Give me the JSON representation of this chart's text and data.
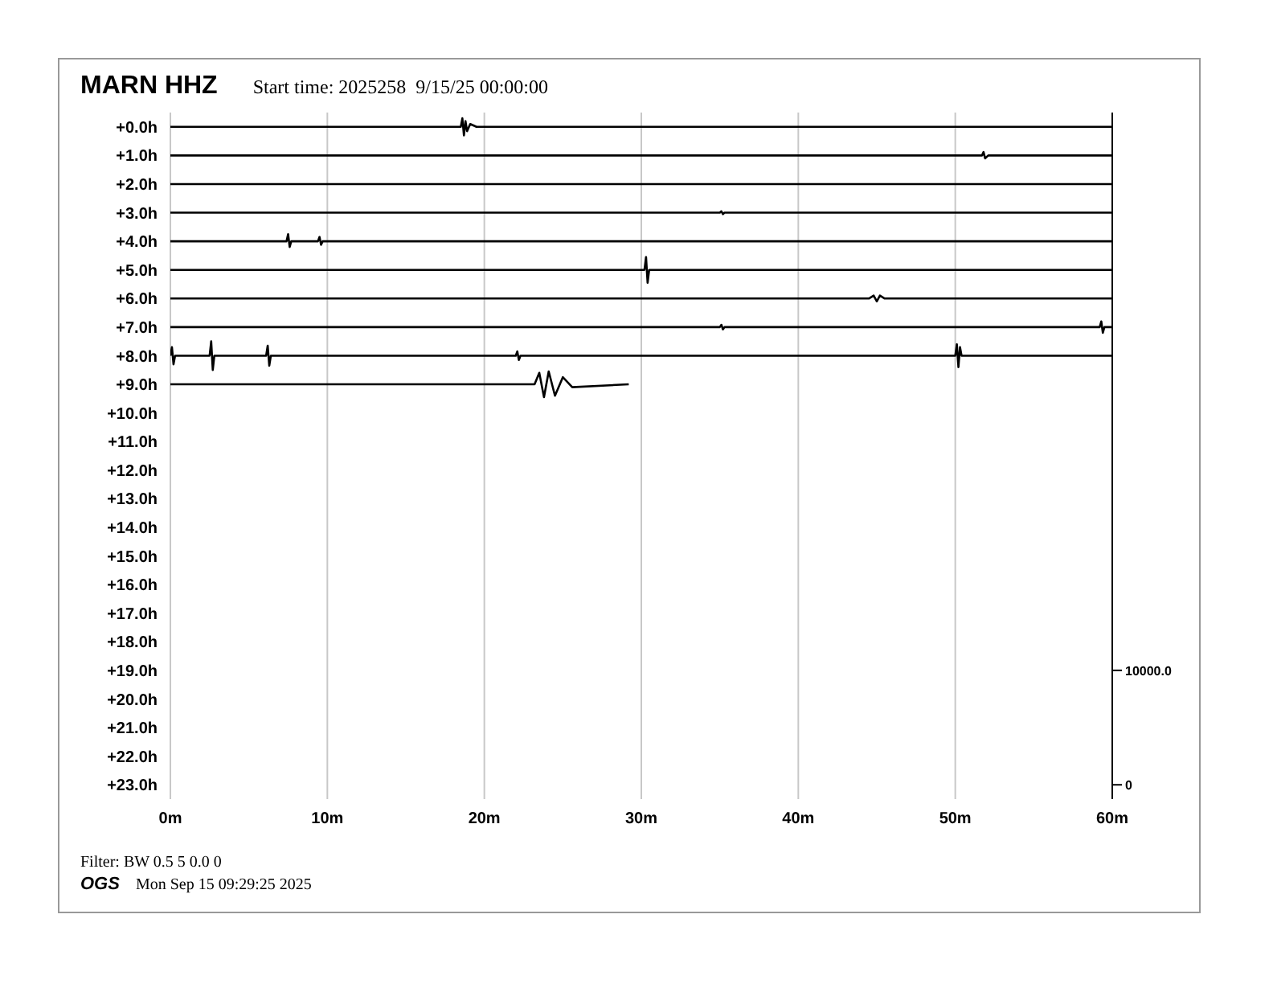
{
  "chart_data": {
    "type": "line",
    "title": "MARN HHZ",
    "subtitle": "Start time: 2025258  9/15/25 00:00:00",
    "annotations": [
      "Filter: BW 0.5 5 0.0 0",
      "OGS",
      "Mon Sep 15 09:29:25 2025"
    ],
    "xlim": [
      0,
      60
    ],
    "xticks": [
      {
        "value": 0,
        "label": "0m"
      },
      {
        "value": 10,
        "label": "10m"
      },
      {
        "value": 20,
        "label": "20m"
      },
      {
        "value": 30,
        "label": "30m"
      },
      {
        "value": 40,
        "label": "40m"
      },
      {
        "value": 50,
        "label": "50m"
      },
      {
        "value": 60,
        "label": "60m"
      }
    ],
    "ylim": [
      23.5,
      -0.5
    ],
    "yticks": [
      {
        "value": 0,
        "label": "+0.0h"
      },
      {
        "value": 1,
        "label": "+1.0h"
      },
      {
        "value": 2,
        "label": "+2.0h"
      },
      {
        "value": 3,
        "label": "+3.0h"
      },
      {
        "value": 4,
        "label": "+4.0h"
      },
      {
        "value": 5,
        "label": "+5.0h"
      },
      {
        "value": 6,
        "label": "+6.0h"
      },
      {
        "value": 7,
        "label": "+7.0h"
      },
      {
        "value": 8,
        "label": "+8.0h"
      },
      {
        "value": 9,
        "label": "+9.0h"
      },
      {
        "value": 10,
        "label": "+10.0h"
      },
      {
        "value": 11,
        "label": "+11.0h"
      },
      {
        "value": 12,
        "label": "+12.0h"
      },
      {
        "value": 13,
        "label": "+13.0h"
      },
      {
        "value": 14,
        "label": "+14.0h"
      },
      {
        "value": 15,
        "label": "+15.0h"
      },
      {
        "value": 16,
        "label": "+16.0h"
      },
      {
        "value": 17,
        "label": "+17.0h"
      },
      {
        "value": 18,
        "label": "+18.0h"
      },
      {
        "value": 19,
        "label": "+19.0h"
      },
      {
        "value": 20,
        "label": "+20.0h"
      },
      {
        "value": 21,
        "label": "+21.0h"
      },
      {
        "value": 22,
        "label": "+22.0h"
      },
      {
        "value": 23,
        "label": "+23.0h"
      }
    ],
    "y2lim": [
      -1250,
      58750
    ],
    "y2ticks": [
      0,
      {
        "value": 10000,
        "label": "10000.0"
      }
    ],
    "grid": "x",
    "marker": "none",
    "line_style": "solid",
    "series": [
      {
        "color": "#000000",
        "x": [
          0,
          18.5,
          18.6,
          18.7,
          18.8,
          18.9,
          19.1,
          19.5,
          60
        ],
        "values": [
          0,
          0,
          -0.3,
          0.3,
          -0.2,
          0.15,
          -0.1,
          0,
          0
        ]
      },
      {
        "color": "#000000",
        "x": [
          0,
          51.7,
          51.8,
          51.9,
          52.1,
          60
        ],
        "values": [
          1,
          1,
          0.88,
          1.1,
          1,
          1
        ]
      },
      {
        "color": "#000000",
        "x": [
          0,
          60
        ],
        "values": [
          2,
          2
        ]
      },
      {
        "color": "#000000",
        "x": [
          0,
          35,
          35.1,
          35.2,
          35.3,
          60
        ],
        "values": [
          3,
          3,
          2.95,
          3.05,
          3,
          3
        ]
      },
      {
        "color": "#000000",
        "x": [
          0,
          7.4,
          7.5,
          7.6,
          7.7,
          9.4,
          9.5,
          9.6,
          9.7,
          60
        ],
        "values": [
          4,
          4,
          3.75,
          4.2,
          4,
          4,
          3.85,
          4.12,
          4,
          4
        ]
      },
      {
        "color": "#000000",
        "x": [
          0,
          30.2,
          30.3,
          30.4,
          30.5,
          60
        ],
        "values": [
          5,
          5,
          4.55,
          5.45,
          5,
          5
        ]
      },
      {
        "color": "#000000",
        "x": [
          0,
          44.5,
          44.8,
          45,
          45.2,
          45.5,
          60
        ],
        "values": [
          6,
          6,
          5.9,
          6.1,
          5.9,
          6,
          6
        ]
      },
      {
        "color": "#000000",
        "x": [
          0,
          35,
          35.1,
          35.2,
          35.3,
          59.2,
          59.3,
          59.4,
          59.5,
          60
        ],
        "values": [
          7,
          7,
          6.92,
          7.08,
          7,
          7,
          6.8,
          7.2,
          7,
          7
        ]
      },
      {
        "color": "#000000",
        "x": [
          0,
          0.1,
          0.2,
          0.3,
          2.5,
          2.6,
          2.7,
          2.8,
          6.1,
          6.2,
          6.3,
          6.4,
          22,
          22.1,
          22.2,
          22.3,
          50,
          50.1,
          50.2,
          50.3,
          50.4,
          60
        ],
        "values": [
          8,
          7.7,
          8.3,
          8,
          8,
          7.5,
          8.5,
          8,
          8,
          7.65,
          8.35,
          8,
          8,
          7.85,
          8.15,
          8,
          8,
          7.6,
          8.4,
          7.7,
          8,
          8
        ]
      },
      {
        "color": "#000000",
        "x": [
          0,
          23.2,
          23.5,
          23.8,
          24.1,
          24.5,
          25,
          25.6,
          29.2
        ],
        "values": [
          9,
          9,
          8.6,
          9.45,
          8.55,
          9.4,
          8.75,
          9.1,
          9
        ]
      }
    ]
  }
}
